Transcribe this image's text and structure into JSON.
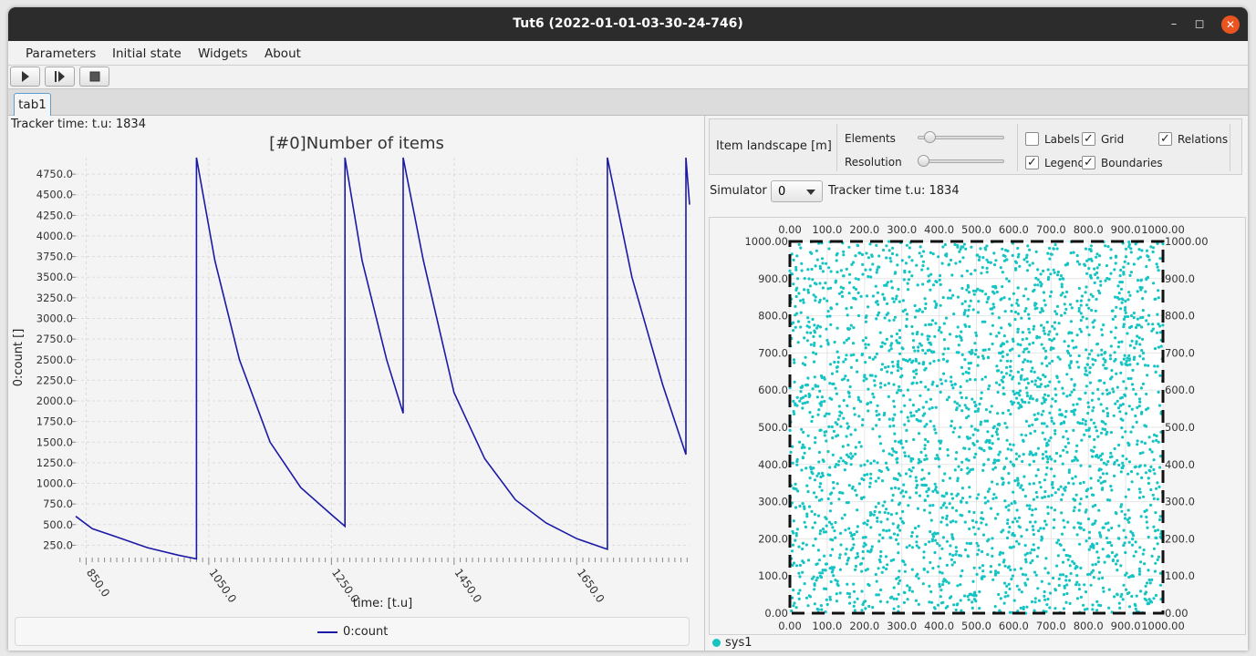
{
  "window": {
    "title": "Tut6 (2022-01-01-03-30-24-746)"
  },
  "menu": [
    "Parameters",
    "Initial state",
    "Widgets",
    "About"
  ],
  "tabs": [
    "tab1"
  ],
  "left": {
    "tracker_text": "Tracker time: t.u: 1834",
    "legend_label": "0:count"
  },
  "right": {
    "panel_title": "Item landscape [m]",
    "elements_label": "Elements",
    "resolution_label": "Resolution",
    "elements_value": 0.08,
    "resolution_value": 0.0,
    "checkboxes": [
      {
        "label": "Labels",
        "checked": false
      },
      {
        "label": "Grid",
        "checked": true
      },
      {
        "label": "Relations",
        "checked": true
      },
      {
        "label": "Legend",
        "checked": true
      },
      {
        "label": "Boundaries",
        "checked": true
      }
    ],
    "simulator_label": "Simulator",
    "simulator_value": "0",
    "tracker_text": "Tracker time t.u: 1834",
    "legend_label": "sys1"
  },
  "colors": {
    "series": "#1a1aa6",
    "points": "#17c4c4",
    "close_button": "#e95420"
  },
  "chart_data": [
    {
      "type": "line",
      "title": "[#0]Number of items",
      "xlabel": "time:  [t.u]",
      "ylabel": "0:count []",
      "xlim": [
        833,
        1834
      ],
      "ylim": [
        100,
        4950
      ],
      "xticks": [
        850,
        1050,
        1250,
        1450,
        1650
      ],
      "xtick_labels": [
        "850.0",
        "1050.0",
        "1250.0",
        "1450.0",
        "1650.0"
      ],
      "yticks": [
        250,
        500,
        750,
        1000,
        1250,
        1500,
        1750,
        2000,
        2250,
        2500,
        2750,
        3000,
        3250,
        3500,
        3750,
        4000,
        4250,
        4500,
        4750
      ],
      "ytick_labels": [
        "250.0",
        "500.0",
        "750.0",
        "1000.0",
        "1250.0",
        "1500.0",
        "1750.0",
        "2000.0",
        "2250.0",
        "2500.0",
        "2750.0",
        "3000.0",
        "3250.0",
        "3500.0",
        "3750.0",
        "4000.0",
        "4250.0",
        "4500.0",
        "4750.0"
      ],
      "grid": true,
      "legend": "bottom",
      "series": [
        {
          "name": "0:count",
          "x": [
            833,
            860,
            900,
            950,
            1000,
            1030,
            1030,
            1060,
            1100,
            1150,
            1200,
            1250,
            1272,
            1272,
            1300,
            1340,
            1367,
            1367,
            1400,
            1450,
            1500,
            1550,
            1600,
            1650,
            1700,
            1700,
            1740,
            1790,
            1828,
            1828,
            1834
          ],
          "y": [
            600,
            450,
            350,
            220,
            130,
            85,
            4950,
            3700,
            2500,
            1500,
            950,
            620,
            480,
            4950,
            3700,
            2500,
            1850,
            4950,
            3700,
            2100,
            1300,
            800,
            520,
            330,
            200,
            4950,
            3500,
            2200,
            1350,
            4950,
            4380
          ]
        }
      ]
    },
    {
      "type": "scatter",
      "xlim": [
        0,
        1000
      ],
      "ylim": [
        0,
        1000
      ],
      "xticks": [
        0,
        100,
        200,
        300,
        400,
        500,
        600,
        700,
        800,
        900,
        1000
      ],
      "xtick_labels": [
        "0.00",
        "100.0",
        "200.0",
        "300.0",
        "400.0",
        "500.0",
        "600.0",
        "700.0",
        "800.0",
        "900.0",
        "1000.00"
      ],
      "ytick_labels": [
        "0.00",
        "100.0",
        "200.0",
        "300.0",
        "400.0",
        "500.0",
        "600.0",
        "700.0",
        "800.0",
        "900.0",
        "1000.00"
      ],
      "grid": true,
      "legend": "bottom-left",
      "series": [
        {
          "name": "sys1",
          "points": 3000,
          "distribution": "uniform",
          "seed": 7
        }
      ]
    }
  ]
}
